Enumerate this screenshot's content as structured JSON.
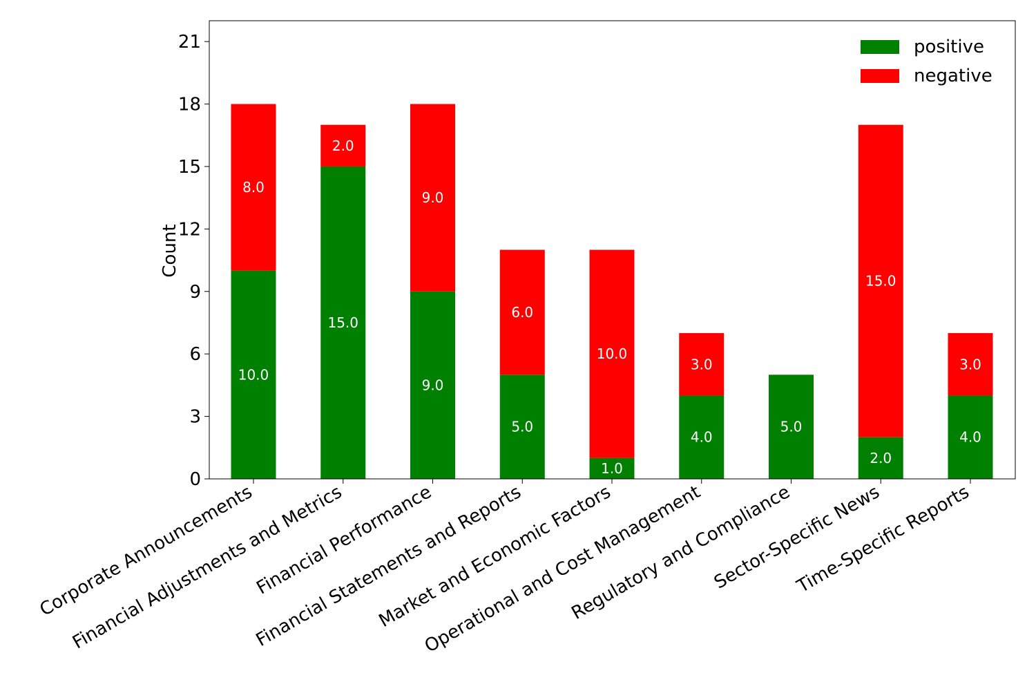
{
  "chart_data": {
    "type": "bar",
    "stacked": true,
    "title": "",
    "xlabel": "",
    "ylabel": "Count",
    "ylim": [
      0,
      22
    ],
    "yticks": [
      0,
      3,
      6,
      9,
      12,
      15,
      18,
      21
    ],
    "categories": [
      "Corporate Announcements",
      "Financial Adjustments and Metrics",
      "Financial Performance",
      "Financial Statements and Reports",
      "Market and Economic Factors",
      "Operational and Cost Management",
      "Regulatory and Compliance",
      "Sector-Specific News",
      "Time-Specific Reports"
    ],
    "series": [
      {
        "name": "positive",
        "color": "#008000",
        "values": [
          10,
          15,
          9,
          5,
          1,
          4,
          5,
          2,
          4
        ],
        "labels": [
          "10.0",
          "15.0",
          "9.0",
          "5.0",
          "1.0",
          "4.0",
          "5.0",
          "2.0",
          "4.0"
        ]
      },
      {
        "name": "negative",
        "color": "#ff0000",
        "values": [
          8,
          2,
          9,
          6,
          10,
          3,
          0,
          15,
          3
        ],
        "labels": [
          "8.0",
          "2.0",
          "9.0",
          "6.0",
          "10.0",
          "3.0",
          "",
          "15.0",
          "3.0"
        ]
      }
    ],
    "legend_position": "top-right"
  }
}
